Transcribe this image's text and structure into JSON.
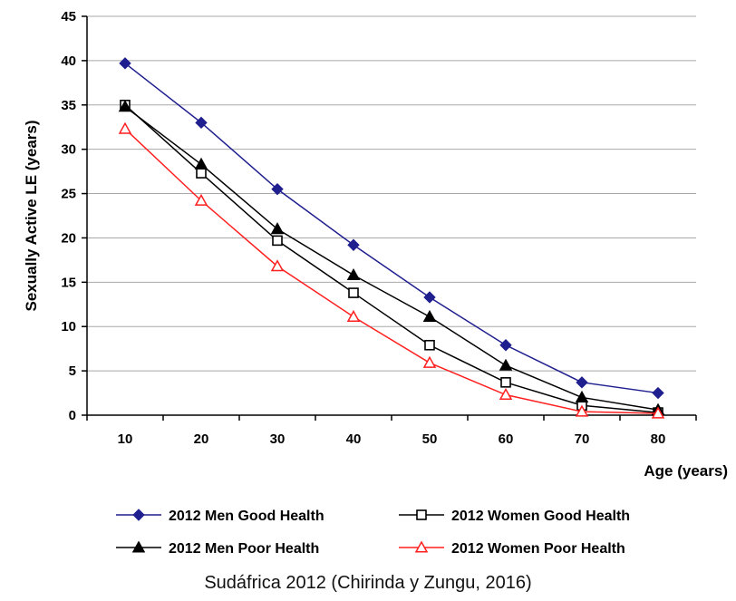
{
  "chart_data": {
    "type": "line",
    "title": "",
    "xlabel": "Age (years)",
    "ylabel": "Sexually Active LE (years)",
    "x": [
      10,
      20,
      30,
      40,
      50,
      60,
      70,
      80
    ],
    "xlim": [
      5,
      85
    ],
    "ylim": [
      0,
      45
    ],
    "yticks": [
      0,
      5,
      10,
      15,
      20,
      25,
      30,
      35,
      40,
      45
    ],
    "grid": true,
    "legend_position": "bottom",
    "series": [
      {
        "name": "2012 Men Good Health",
        "color": "#1f1f8f",
        "marker": "diamond-filled",
        "values": [
          39.7,
          33.0,
          25.5,
          19.2,
          13.3,
          7.9,
          3.7,
          2.5
        ]
      },
      {
        "name": "2012 Women Good Health",
        "color": "#000000",
        "marker": "square-open",
        "values": [
          35.0,
          27.3,
          19.7,
          13.8,
          7.9,
          3.7,
          1.1,
          0.3
        ]
      },
      {
        "name": "2012 Men Poor Health",
        "color": "#000000",
        "marker": "triangle-filled",
        "values": [
          34.8,
          28.3,
          21.0,
          15.8,
          11.1,
          5.6,
          2.0,
          0.6
        ]
      },
      {
        "name": "2012 Women Poor Health",
        "color": "#ff1f1f",
        "marker": "triangle-open",
        "values": [
          32.3,
          24.2,
          16.8,
          11.1,
          5.9,
          2.3,
          0.4,
          0.2
        ]
      }
    ]
  },
  "caption": "Sudáfrica 2012 (Chirinda  y Zungu, 2016)"
}
